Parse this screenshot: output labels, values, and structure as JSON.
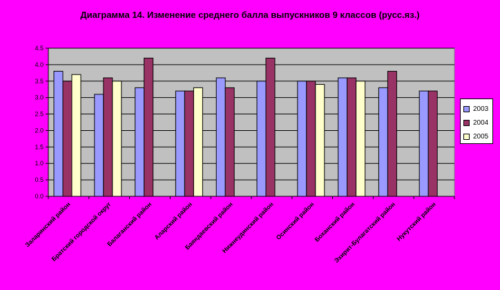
{
  "chart_data": {
    "type": "bar",
    "title": "Диаграмма 14. Изменение среднего балла выпускников 9 классов (русс.яз.)",
    "xlabel": "",
    "ylabel": "",
    "ylim": [
      0,
      4.5
    ],
    "yticks": [
      "0.0",
      "0.5",
      "1.0",
      "1.5",
      "2.0",
      "2.5",
      "3.0",
      "3.5",
      "4.0",
      "4.5"
    ],
    "categories": [
      "Заларинский район",
      "Братский городской округ",
      "Балаганский район",
      "Аларский район",
      "Баяндаевский район",
      "Нижнеудинский район",
      "Осинский район",
      "Боханский район",
      "Эхирит-Булагатский район",
      "Нукутский район"
    ],
    "series": [
      {
        "name": "2003",
        "color": "#9999ff",
        "values": [
          3.8,
          3.1,
          3.3,
          3.2,
          3.6,
          3.5,
          3.5,
          3.6,
          3.3,
          3.2
        ]
      },
      {
        "name": "2004",
        "color": "#993366",
        "values": [
          3.5,
          3.6,
          4.2,
          3.2,
          3.3,
          4.2,
          3.5,
          3.6,
          3.8,
          3.2
        ]
      },
      {
        "name": "2005",
        "color": "#ffffcc",
        "values": [
          3.7,
          3.5,
          null,
          3.3,
          null,
          null,
          3.4,
          3.5,
          null,
          null
        ]
      }
    ],
    "grid": true,
    "legend": "right",
    "plot_background": "#c0c0c0"
  }
}
